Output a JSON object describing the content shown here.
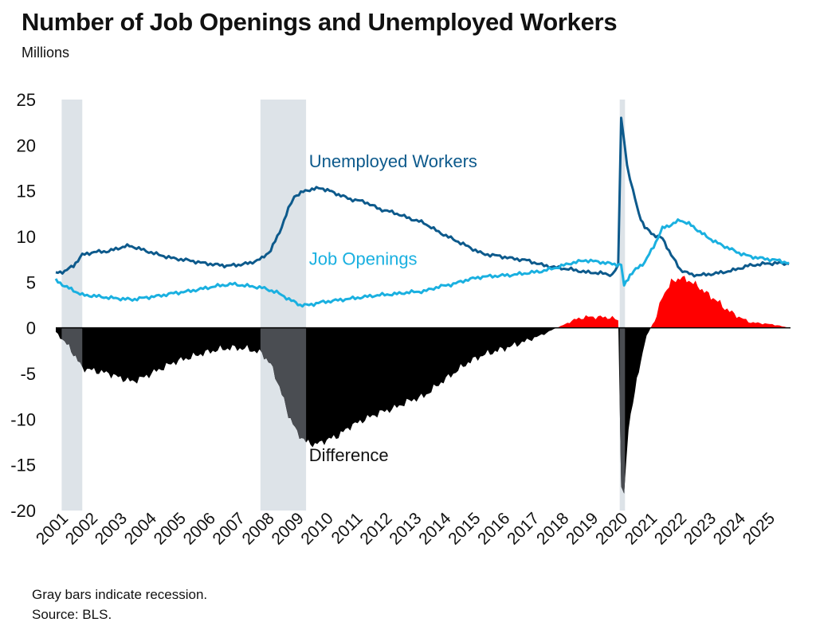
{
  "header": {
    "title": "Number of Job Openings and Unemployed Workers",
    "subtitle": "Millions"
  },
  "footer": {
    "note1": "Gray bars indicate recession.",
    "note2": "Source: BLS."
  },
  "chart_data": {
    "type": "line",
    "title": "Number of Job Openings and Unemployed Workers",
    "ylabel": "Millions",
    "xlabel": "",
    "ylim": [
      -20,
      25
    ],
    "xlim": [
      2001.0,
      2025.95
    ],
    "y_ticks": [
      "25",
      "20",
      "15",
      "10",
      "5",
      "0",
      "-5",
      "-10",
      "-15",
      "-20"
    ],
    "x_ticks": [
      "2001",
      "2002",
      "2003",
      "2004",
      "2005",
      "2006",
      "2007",
      "2008",
      "2009",
      "2010",
      "2011",
      "2012",
      "2013",
      "2014",
      "2015",
      "2016",
      "2017",
      "2018",
      "2019",
      "2020",
      "2021",
      "2022",
      "2023",
      "2024",
      "2025"
    ],
    "grid": false,
    "legend": "inline labels",
    "recessions": [
      [
        2001.2,
        2001.9
      ],
      [
        2007.95,
        2009.5
      ],
      [
        2020.15,
        2020.33
      ]
    ],
    "colors": {
      "unemployed": "#0d5a8c",
      "openings": "#1ab0e0",
      "difference_negative": "#000000",
      "difference_positive": "#ff0000",
      "difference_in_recession": "#4a4d52",
      "recession_bar": "#dde3e8"
    },
    "annotations": [
      {
        "text": "Unemployed  Workers",
        "x": 2009.6,
        "y": 17.6
      },
      {
        "text": "Job Openings",
        "x": 2009.6,
        "y": 6.9
      },
      {
        "text": "Difference",
        "x": 2009.6,
        "y": -14.6
      }
    ],
    "series": [
      {
        "name": "Unemployed  Workers",
        "x": [
          2001.0,
          2001.3,
          2001.6,
          2001.9,
          2002.3,
          2002.8,
          2003.2,
          2003.5,
          2003.9,
          2004.5,
          2005.0,
          2005.5,
          2006.0,
          2006.5,
          2006.8,
          2007.2,
          2007.6,
          2008.0,
          2008.3,
          2008.6,
          2008.9,
          2009.1,
          2009.4,
          2009.7,
          2010.0,
          2010.3,
          2010.6,
          2011.0,
          2011.5,
          2012.0,
          2012.5,
          2013.0,
          2013.5,
          2014.0,
          2014.5,
          2015.0,
          2015.5,
          2016.0,
          2016.5,
          2017.0,
          2017.5,
          2018.0,
          2018.5,
          2019.0,
          2019.5,
          2019.9,
          2020.1,
          2020.2,
          2020.3,
          2020.4,
          2020.6,
          2020.8,
          2021.0,
          2021.3,
          2021.6,
          2021.9,
          2022.2,
          2022.6,
          2023.0,
          2023.5,
          2024.0,
          2024.5,
          2025.0,
          2025.5,
          2025.9
        ],
        "values": [
          6.0,
          6.2,
          6.8,
          8.0,
          8.3,
          8.4,
          8.8,
          9.0,
          8.6,
          8.0,
          7.6,
          7.4,
          7.1,
          6.9,
          6.8,
          6.9,
          7.1,
          7.6,
          8.5,
          10.5,
          13.0,
          14.4,
          14.9,
          15.2,
          15.3,
          15.0,
          14.6,
          14.1,
          13.8,
          13.0,
          12.6,
          12.0,
          11.5,
          10.5,
          9.7,
          8.9,
          8.1,
          7.9,
          7.6,
          7.4,
          6.9,
          6.6,
          6.4,
          6.1,
          6.0,
          5.8,
          6.9,
          23.0,
          20.5,
          17.8,
          15.0,
          12.5,
          11.0,
          10.2,
          9.8,
          8.0,
          6.4,
          5.8,
          5.8,
          6.0,
          6.3,
          6.8,
          7.0,
          7.1,
          7.0
        ]
      },
      {
        "name": "Job Openings",
        "x": [
          2001.0,
          2001.3,
          2001.6,
          2001.9,
          2002.3,
          2002.8,
          2003.2,
          2003.6,
          2004.0,
          2004.5,
          2005.0,
          2005.5,
          2006.0,
          2006.5,
          2007.0,
          2007.5,
          2008.0,
          2008.5,
          2009.0,
          2009.3,
          2009.6,
          2010.0,
          2010.5,
          2011.0,
          2011.5,
          2012.0,
          2012.5,
          2013.0,
          2013.5,
          2014.0,
          2014.5,
          2015.0,
          2015.5,
          2016.0,
          2016.5,
          2017.0,
          2017.5,
          2018.0,
          2018.5,
          2019.0,
          2019.5,
          2019.9,
          2020.2,
          2020.3,
          2020.5,
          2020.7,
          2021.0,
          2021.3,
          2021.6,
          2021.9,
          2022.2,
          2022.5,
          2022.8,
          2023.1,
          2023.4,
          2023.8,
          2024.2,
          2024.6,
          2025.0,
          2025.5,
          2025.9
        ],
        "values": [
          5.2,
          4.6,
          4.1,
          3.6,
          3.5,
          3.3,
          3.2,
          3.1,
          3.3,
          3.5,
          3.8,
          4.0,
          4.3,
          4.6,
          4.8,
          4.6,
          4.4,
          3.9,
          3.0,
          2.5,
          2.5,
          2.8,
          3.0,
          3.2,
          3.4,
          3.6,
          3.7,
          3.9,
          4.0,
          4.5,
          4.8,
          5.3,
          5.6,
          5.7,
          5.8,
          6.0,
          6.2,
          6.6,
          7.1,
          7.4,
          7.2,
          7.0,
          6.9,
          4.6,
          5.8,
          6.4,
          7.2,
          8.9,
          10.9,
          11.3,
          11.8,
          11.4,
          10.7,
          10.0,
          9.4,
          8.8,
          8.2,
          7.8,
          7.6,
          7.4,
          7.1
        ]
      },
      {
        "name": "Difference",
        "x": [
          2001.0,
          2001.3,
          2001.6,
          2001.9,
          2002.3,
          2002.8,
          2003.2,
          2003.6,
          2004.0,
          2004.5,
          2005.0,
          2005.5,
          2006.0,
          2006.5,
          2007.0,
          2007.5,
          2008.0,
          2008.3,
          2008.6,
          2008.9,
          2009.2,
          2009.5,
          2009.8,
          2010.2,
          2010.6,
          2011.0,
          2011.5,
          2012.0,
          2012.5,
          2013.0,
          2013.5,
          2014.0,
          2014.5,
          2015.0,
          2015.5,
          2016.0,
          2016.5,
          2017.0,
          2017.5,
          2018.0,
          2018.3,
          2018.6,
          2019.0,
          2019.5,
          2019.9,
          2020.1,
          2020.2,
          2020.3,
          2020.45,
          2020.6,
          2020.8,
          2021.0,
          2021.2,
          2021.4,
          2021.6,
          2021.9,
          2022.2,
          2022.5,
          2022.8,
          2023.1,
          2023.4,
          2023.8,
          2024.2,
          2024.6,
          2025.0,
          2025.5,
          2025.9
        ],
        "values": [
          -0.5,
          -1.5,
          -2.8,
          -4.4,
          -4.7,
          -5.0,
          -5.5,
          -5.9,
          -5.4,
          -4.6,
          -3.8,
          -3.3,
          -2.8,
          -2.4,
          -2.2,
          -2.3,
          -2.8,
          -4.0,
          -6.5,
          -9.5,
          -11.5,
          -12.5,
          -12.8,
          -12.3,
          -11.8,
          -10.8,
          -10.0,
          -9.3,
          -8.8,
          -8.0,
          -7.5,
          -6.2,
          -5.0,
          -3.8,
          -3.0,
          -2.5,
          -2.0,
          -1.4,
          -0.8,
          0.0,
          0.4,
          0.9,
          1.2,
          1.2,
          1.1,
          0.8,
          -17.0,
          -18.4,
          -11.0,
          -8.0,
          -4.8,
          -1.5,
          0.0,
          1.2,
          3.5,
          5.0,
          5.5,
          5.2,
          4.6,
          3.8,
          3.1,
          2.0,
          1.2,
          0.6,
          0.5,
          0.3,
          0.0
        ]
      }
    ]
  }
}
